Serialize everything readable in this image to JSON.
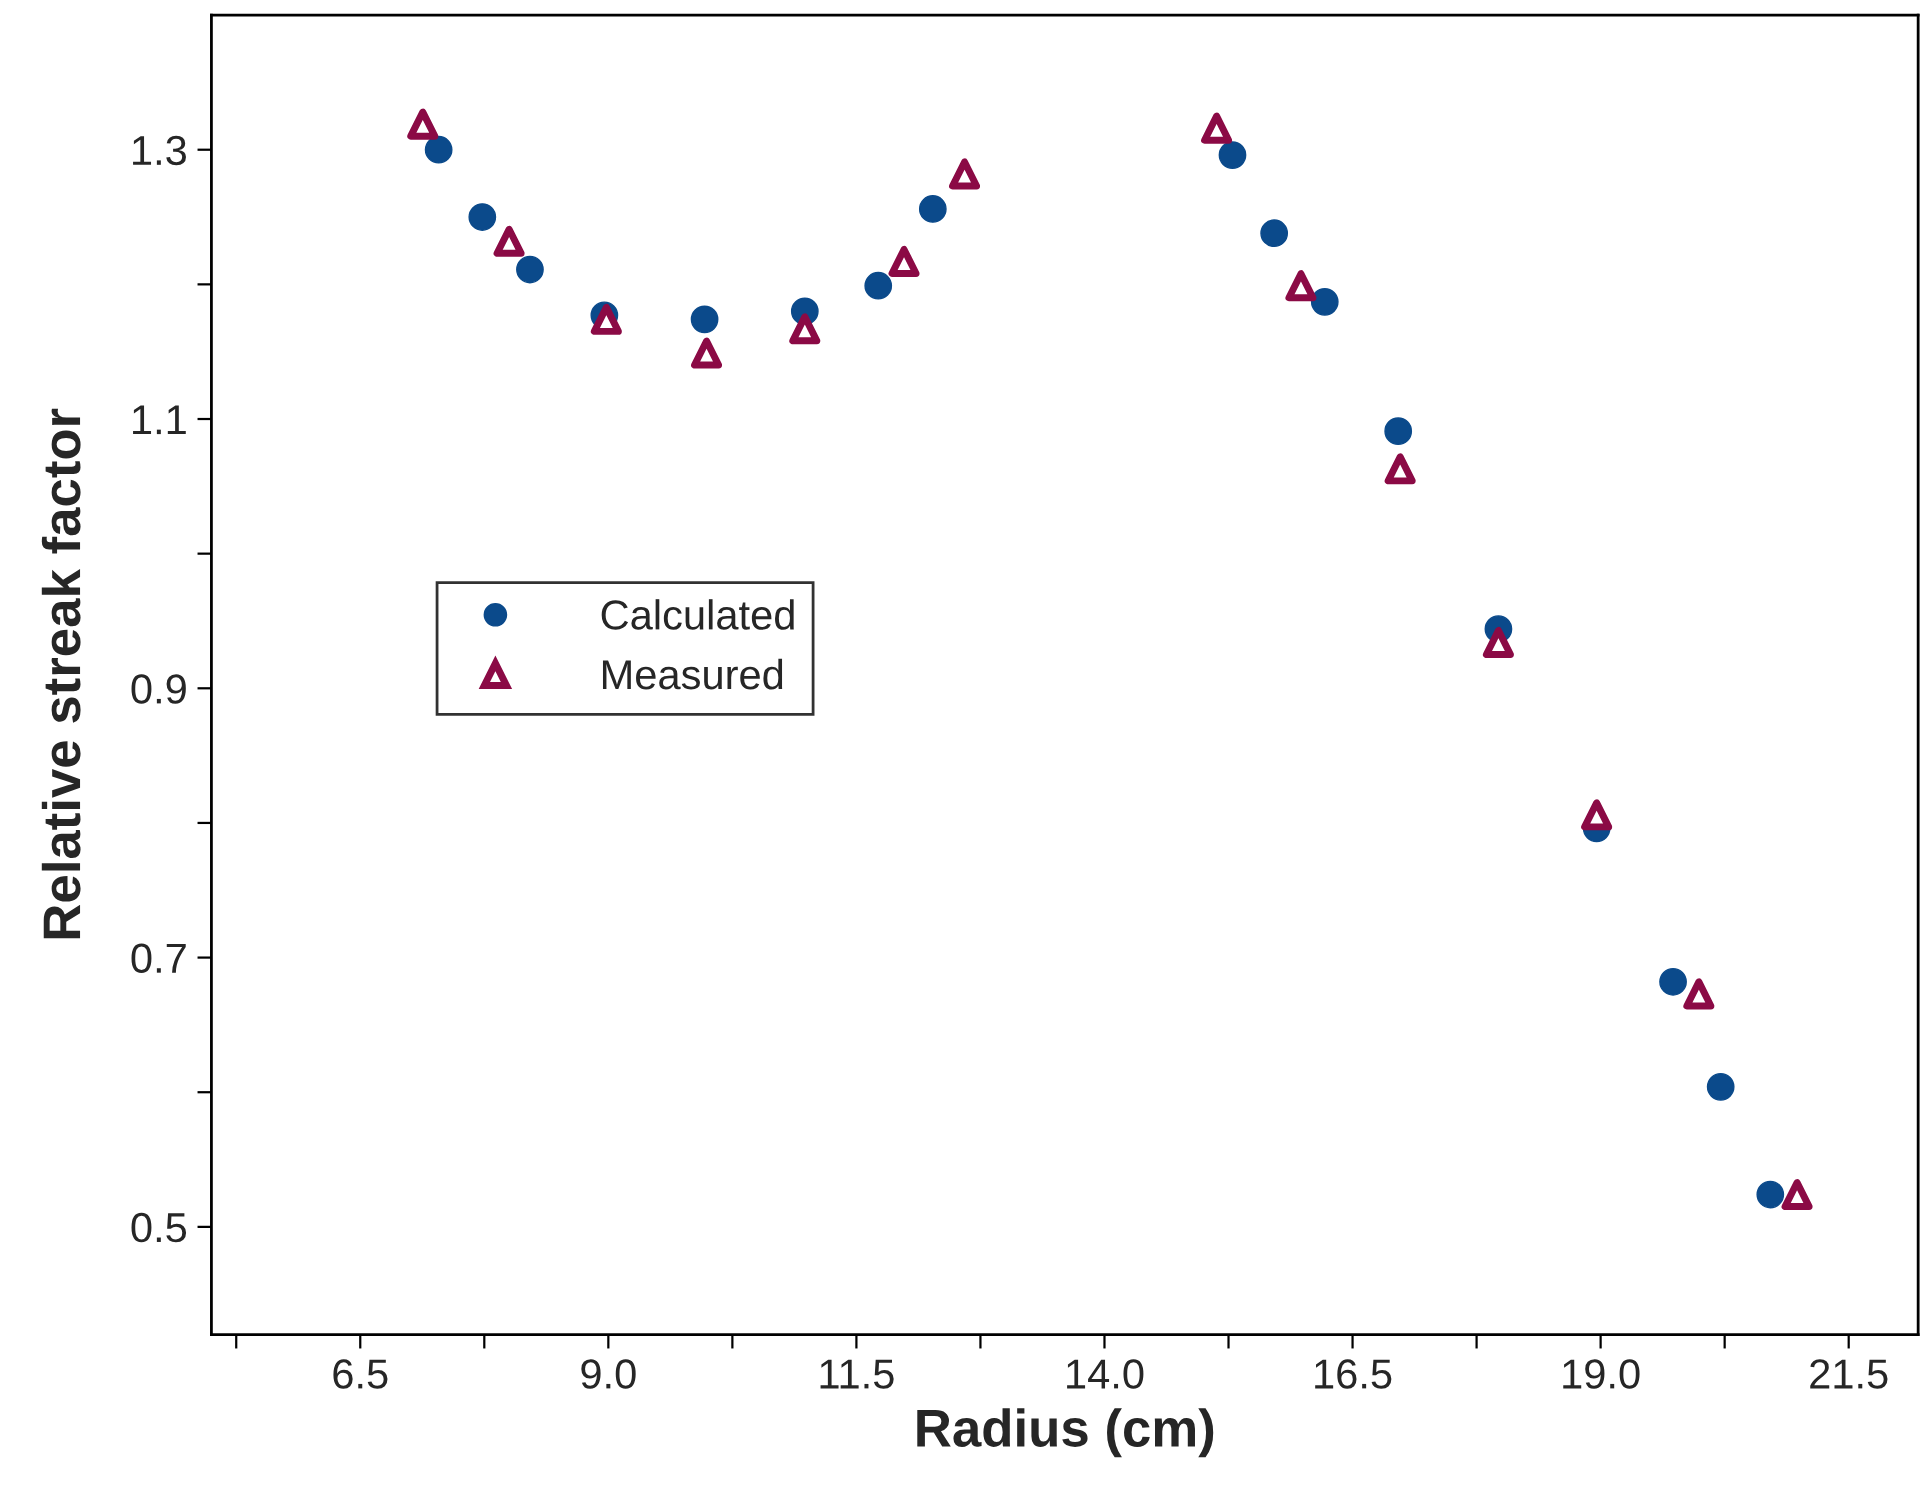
{
  "chart_data": {
    "type": "scatter",
    "xlabel": "Radius (cm)",
    "ylabel": "Relative streak factor",
    "xlim": [
      5.0,
      22.2
    ],
    "ylim": [
      0.42,
      1.4
    ],
    "xticks": [
      {
        "value": 5.25,
        "label": null
      },
      6.5,
      {
        "value": 7.75,
        "label": null
      },
      {
        "value": 9,
        "label": "9.0"
      },
      {
        "value": 10.25,
        "label": null
      },
      11.5,
      {
        "value": 12.75,
        "label": null
      },
      {
        "value": 14,
        "label": "14.0"
      },
      {
        "value": 15.25,
        "label": null
      },
      16.5,
      {
        "value": 17.75,
        "label": null
      },
      {
        "value": 19,
        "label": "19.0"
      },
      {
        "value": 20.25,
        "label": null
      },
      21.5
    ],
    "yticks": [
      0.5,
      {
        "value": 0.6,
        "label": null
      },
      0.7,
      {
        "value": 0.8,
        "label": null
      },
      0.9,
      {
        "value": 1.0,
        "label": null
      },
      1.1,
      {
        "value": 1.2,
        "label": null
      },
      1.3
    ],
    "grid": false,
    "legend": "center left",
    "series": [
      {
        "name": "Calculated",
        "color": "#0b4a8b",
        "marker": "circle",
        "x": [
          7.29,
          7.73,
          8.21,
          8.96,
          9.97,
          10.98,
          11.72,
          12.27,
          15.29,
          15.71,
          16.22,
          16.96,
          17.97,
          18.96,
          19.73,
          20.21,
          20.71
        ],
        "values": [
          1.3,
          1.25,
          1.211,
          1.177,
          1.174,
          1.18,
          1.199,
          1.256,
          1.296,
          1.238,
          1.187,
          1.091,
          0.944,
          0.796,
          0.682,
          0.604,
          0.524
        ]
      },
      {
        "name": "Measured",
        "color": "#8b0a45",
        "marker": "triangle",
        "x": [
          7.13,
          8.0,
          8.98,
          9.99,
          10.98,
          11.98,
          12.59,
          15.13,
          15.98,
          16.98,
          17.97,
          18.96,
          19.99,
          20.98
        ],
        "values": [
          1.319,
          1.232,
          1.174,
          1.149,
          1.167,
          1.217,
          1.282,
          1.316,
          1.199,
          1.063,
          0.934,
          0.806,
          0.673,
          0.524
        ]
      }
    ]
  }
}
